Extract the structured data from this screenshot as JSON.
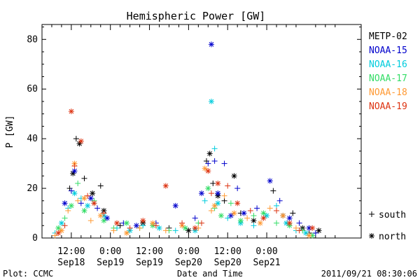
{
  "chart_data": {
    "type": "scatter",
    "title": "Hemispheric Power [GW]",
    "ylabel": "P [GW]",
    "xlabel": "Date and Time",
    "ylim": [
      0,
      86
    ],
    "yticks": [
      0,
      20,
      40,
      60,
      80
    ],
    "xlim_hours": [
      -21,
      77
    ],
    "xticks": [
      {
        "hour": -12,
        "label": "12:00",
        "date": "Sep18"
      },
      {
        "hour": 0,
        "label": "0:00",
        "date": "Sep19"
      },
      {
        "hour": 12,
        "label": "12:00",
        "date": "Sep19"
      },
      {
        "hour": 24,
        "label": "0:00",
        "date": "Sep20"
      },
      {
        "hour": 36,
        "label": "12:00",
        "date": "Sep20"
      },
      {
        "hour": 48,
        "label": "0:00",
        "date": "Sep21"
      }
    ],
    "grid": false,
    "legend_placement": "right",
    "series": [
      {
        "name": "METP-02",
        "color": "#000000",
        "values": [
          [
            -12.5,
            20
          ],
          [
            -11.5,
            26
          ],
          [
            -10.5,
            40
          ],
          [
            -9.5,
            38
          ],
          [
            -8,
            24
          ],
          [
            -5.5,
            18
          ],
          [
            -3,
            21
          ],
          [
            -2,
            11
          ],
          [
            3,
            5
          ],
          [
            10,
            6
          ],
          [
            18,
            4
          ],
          [
            24,
            3
          ],
          [
            29.5,
            31
          ],
          [
            30.5,
            34
          ],
          [
            31.5,
            22
          ],
          [
            33,
            17
          ],
          [
            35,
            15
          ],
          [
            38,
            25
          ],
          [
            40,
            10
          ],
          [
            44,
            7
          ],
          [
            50,
            19
          ],
          [
            53,
            9
          ],
          [
            56,
            10
          ],
          [
            59,
            4
          ],
          [
            61,
            2
          ],
          [
            64,
            3
          ]
        ]
      },
      {
        "name": "NOAA-15",
        "color": "#0000cc",
        "values": [
          [
            -14,
            14
          ],
          [
            -12,
            19
          ],
          [
            -11,
            27
          ],
          [
            -9,
            14
          ],
          [
            -6,
            16
          ],
          [
            -4,
            12
          ],
          [
            -1,
            8
          ],
          [
            4,
            6
          ],
          [
            8,
            5
          ],
          [
            14,
            6
          ],
          [
            20,
            13
          ],
          [
            26,
            8
          ],
          [
            28,
            18
          ],
          [
            30,
            30
          ],
          [
            31,
            78
          ],
          [
            32,
            31
          ],
          [
            33,
            18
          ],
          [
            35,
            30
          ],
          [
            37,
            9
          ],
          [
            39,
            20
          ],
          [
            41,
            10
          ],
          [
            45,
            12
          ],
          [
            49,
            23
          ],
          [
            52,
            15
          ],
          [
            55,
            8
          ],
          [
            58,
            6
          ],
          [
            61,
            4
          ],
          [
            63,
            2
          ]
        ]
      },
      {
        "name": "NOAA-16",
        "color": "#00ccdd",
        "values": [
          [
            -17,
            2
          ],
          [
            -15,
            6
          ],
          [
            -13,
            12
          ],
          [
            -11,
            18
          ],
          [
            -9,
            16
          ],
          [
            -7,
            13
          ],
          [
            -5,
            14
          ],
          [
            -2,
            9
          ],
          [
            2,
            4
          ],
          [
            6,
            3
          ],
          [
            10,
            5
          ],
          [
            15,
            4
          ],
          [
            20,
            3
          ],
          [
            26,
            3
          ],
          [
            29,
            15
          ],
          [
            31,
            55
          ],
          [
            32,
            36
          ],
          [
            33,
            14
          ],
          [
            36,
            8
          ],
          [
            40,
            6
          ],
          [
            44,
            5
          ],
          [
            48,
            9
          ],
          [
            51,
            13
          ],
          [
            54,
            6
          ],
          [
            57,
            3
          ],
          [
            60,
            2
          ]
        ]
      },
      {
        "name": "NOAA-17",
        "color": "#33dd66",
        "values": [
          [
            -16,
            4
          ],
          [
            -14,
            8
          ],
          [
            -12,
            13
          ],
          [
            -10,
            22
          ],
          [
            -8,
            11
          ],
          [
            -5,
            15
          ],
          [
            -2,
            7
          ],
          [
            1,
            4
          ],
          [
            5,
            6
          ],
          [
            9,
            4
          ],
          [
            13,
            5
          ],
          [
            18,
            3
          ],
          [
            23,
            4
          ],
          [
            27,
            6
          ],
          [
            30,
            20
          ],
          [
            32,
            12
          ],
          [
            34,
            9
          ],
          [
            37,
            14
          ],
          [
            40,
            7
          ],
          [
            44,
            9
          ],
          [
            47,
            10
          ],
          [
            51,
            6
          ],
          [
            55,
            5
          ],
          [
            59,
            3
          ],
          [
            62,
            1
          ]
        ]
      },
      {
        "name": "NOAA-18",
        "color": "#ff9933",
        "values": [
          [
            -17,
            1
          ],
          [
            -15,
            3
          ],
          [
            -13,
            11
          ],
          [
            -11,
            30
          ],
          [
            -10,
            15
          ],
          [
            -8,
            16
          ],
          [
            -6,
            7
          ],
          [
            -3,
            9
          ],
          [
            1,
            3
          ],
          [
            5,
            2
          ],
          [
            9,
            4
          ],
          [
            13,
            6
          ],
          [
            17,
            3
          ],
          [
            22,
            5
          ],
          [
            27,
            4
          ],
          [
            29,
            28
          ],
          [
            31,
            11
          ],
          [
            32,
            13
          ],
          [
            35,
            17
          ],
          [
            38,
            10
          ],
          [
            42,
            8
          ],
          [
            46,
            6
          ],
          [
            49,
            12
          ],
          [
            53,
            9
          ],
          [
            57,
            4
          ],
          [
            61,
            1
          ]
        ]
      },
      {
        "name": "NOAA-19",
        "color": "#dd3311",
        "values": [
          [
            -16,
            2
          ],
          [
            -14,
            5
          ],
          [
            -12,
            51
          ],
          [
            -11,
            29
          ],
          [
            -9,
            39
          ],
          [
            -7,
            17
          ],
          [
            -5,
            14
          ],
          [
            -2,
            10
          ],
          [
            2,
            6
          ],
          [
            6,
            4
          ],
          [
            10,
            7
          ],
          [
            14,
            5
          ],
          [
            17,
            21
          ],
          [
            22,
            6
          ],
          [
            26,
            4
          ],
          [
            28,
            6
          ],
          [
            30,
            27
          ],
          [
            31,
            18
          ],
          [
            33,
            22
          ],
          [
            36,
            21
          ],
          [
            39,
            14
          ],
          [
            43,
            11
          ],
          [
            47,
            8
          ],
          [
            51,
            11
          ],
          [
            55,
            6
          ],
          [
            58,
            3
          ],
          [
            62,
            4
          ]
        ]
      }
    ],
    "markers": [
      {
        "symbol": "+",
        "label": "south"
      },
      {
        "symbol": "*",
        "label": "north"
      }
    ]
  },
  "footer": {
    "left": "Plot: CCMC",
    "right": "2011/09/21 08:30:06"
  }
}
